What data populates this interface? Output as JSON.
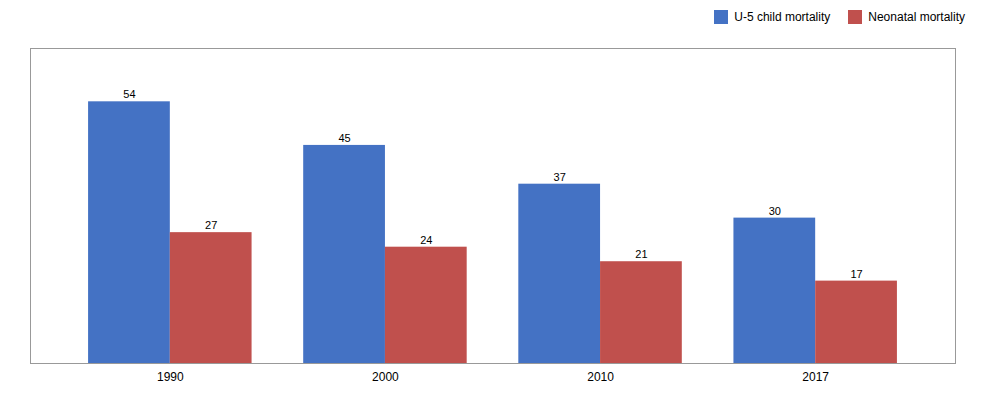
{
  "chart_data": {
    "type": "bar",
    "categories": [
      "1990",
      "2000",
      "2010",
      "2017"
    ],
    "series": [
      {
        "name": "U-5 child mortality",
        "color": "#4472C4",
        "values": [
          54,
          45,
          37,
          30
        ]
      },
      {
        "name": "Neonatal mortality",
        "color": "#C0504D",
        "values": [
          27,
          24,
          21,
          17
        ]
      }
    ],
    "ylim": [
      0,
      65
    ],
    "data_labels": true,
    "tick_labels": "x",
    "legend": "upper right",
    "grid": false
  }
}
